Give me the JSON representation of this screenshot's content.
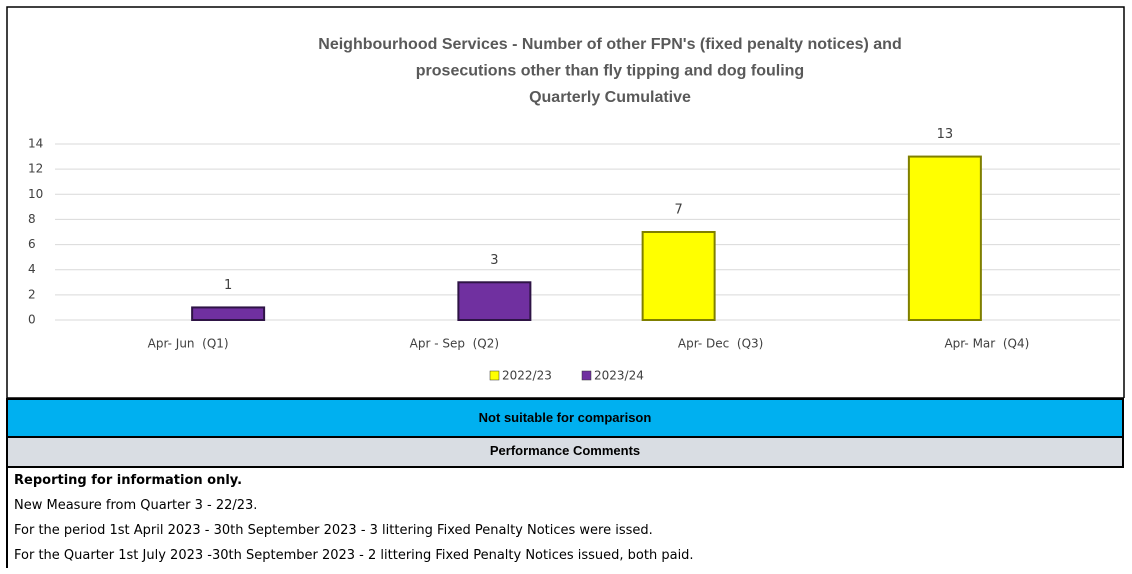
{
  "chart_data": {
    "type": "bar",
    "title": [
      "Neighbourhood Services - Number of other FPN's (fixed penalty notices) and",
      "prosecutions other than fly tipping and dog fouling",
      "Quarterly Cumulative"
    ],
    "categories": [
      "Apr- Jun  (Q1)",
      "Apr - Sep  (Q2)",
      "Apr- Dec  (Q3)",
      "Apr- Mar  (Q4)"
    ],
    "series": [
      {
        "name": "2022/23",
        "color": "#ffff00",
        "values": [
          null,
          null,
          7,
          13
        ]
      },
      {
        "name": "2023/24",
        "color": "#7030a0",
        "values": [
          1,
          3,
          null,
          null
        ]
      }
    ],
    "ylim": [
      0,
      14
    ],
    "yticks": [
      0,
      2,
      4,
      6,
      8,
      10,
      12,
      14
    ],
    "grid": true,
    "legend": "bottom"
  },
  "comparison": "Not suitable for comparison",
  "comments": {
    "heading": "Performance Comments",
    "lead": "Reporting for information only.",
    "lines": [
      "New Measure from Quarter 3 - 22/23.",
      "For the period 1st April 2023 - 30th September 2023 - 3 littering Fixed Penalty Notices were issed.",
      "For the Quarter 1st July 2023 -30th September 2023 - 2 littering Fixed Penalty Notices issued, both paid."
    ]
  }
}
